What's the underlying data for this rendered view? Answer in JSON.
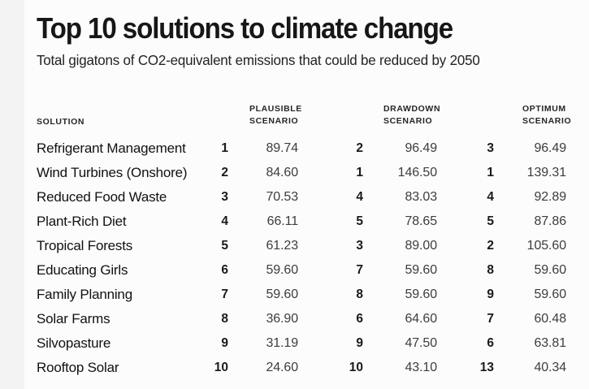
{
  "chart_data": {
    "type": "table",
    "title": "Top 10 solutions to climate change",
    "subtitle": "Total gigatons of CO2-equivalent emissions that could be reduced by 2050",
    "solution_header": "SOLUTION",
    "scenario_headers": [
      {
        "line1": "PLAUSIBLE",
        "line2": "SCENARIO"
      },
      {
        "line1": "DRAWDOWN",
        "line2": "SCENARIO"
      },
      {
        "line1": "OPTIMUM",
        "line2": "SCENARIO"
      }
    ],
    "value_unit": "gigatons CO2-equivalent reduced by 2050",
    "rows": [
      {
        "solution": "Refrigerant Management",
        "plausible_rank": "1",
        "plausible_value": "89.74",
        "drawdown_rank": "2",
        "drawdown_value": "96.49",
        "optimum_rank": "3",
        "optimum_value": "96.49"
      },
      {
        "solution": "Wind Turbines (Onshore)",
        "plausible_rank": "2",
        "plausible_value": "84.60",
        "drawdown_rank": "1",
        "drawdown_value": "146.50",
        "optimum_rank": "1",
        "optimum_value": "139.31"
      },
      {
        "solution": "Reduced Food Waste",
        "plausible_rank": "3",
        "plausible_value": "70.53",
        "drawdown_rank": "4",
        "drawdown_value": "83.03",
        "optimum_rank": "4",
        "optimum_value": "92.89"
      },
      {
        "solution": "Plant-Rich Diet",
        "plausible_rank": "4",
        "plausible_value": "66.11",
        "drawdown_rank": "5",
        "drawdown_value": "78.65",
        "optimum_rank": "5",
        "optimum_value": "87.86"
      },
      {
        "solution": "Tropical Forests",
        "plausible_rank": "5",
        "plausible_value": "61.23",
        "drawdown_rank": "3",
        "drawdown_value": "89.00",
        "optimum_rank": "2",
        "optimum_value": "105.60"
      },
      {
        "solution": "Educating Girls",
        "plausible_rank": "6",
        "plausible_value": "59.60",
        "drawdown_rank": "7",
        "drawdown_value": "59.60",
        "optimum_rank": "8",
        "optimum_value": "59.60"
      },
      {
        "solution": "Family Planning",
        "plausible_rank": "7",
        "plausible_value": "59.60",
        "drawdown_rank": "8",
        "drawdown_value": "59.60",
        "optimum_rank": "9",
        "optimum_value": "59.60"
      },
      {
        "solution": "Solar Farms",
        "plausible_rank": "8",
        "plausible_value": "36.90",
        "drawdown_rank": "6",
        "drawdown_value": "64.60",
        "optimum_rank": "7",
        "optimum_value": "60.48"
      },
      {
        "solution": "Silvopasture",
        "plausible_rank": "9",
        "plausible_value": "31.19",
        "drawdown_rank": "9",
        "drawdown_value": "47.50",
        "optimum_rank": "6",
        "optimum_value": "63.81"
      },
      {
        "solution": "Rooftop Solar",
        "plausible_rank": "10",
        "plausible_value": "24.60",
        "drawdown_rank": "10",
        "drawdown_value": "43.10",
        "optimum_rank": "13",
        "optimum_value": "40.34"
      }
    ],
    "colors": {
      "background": "#fcfcfc",
      "left_strip": "#f3f3f3",
      "title_text": "#171717",
      "value_text": "#3d3d3d"
    }
  }
}
